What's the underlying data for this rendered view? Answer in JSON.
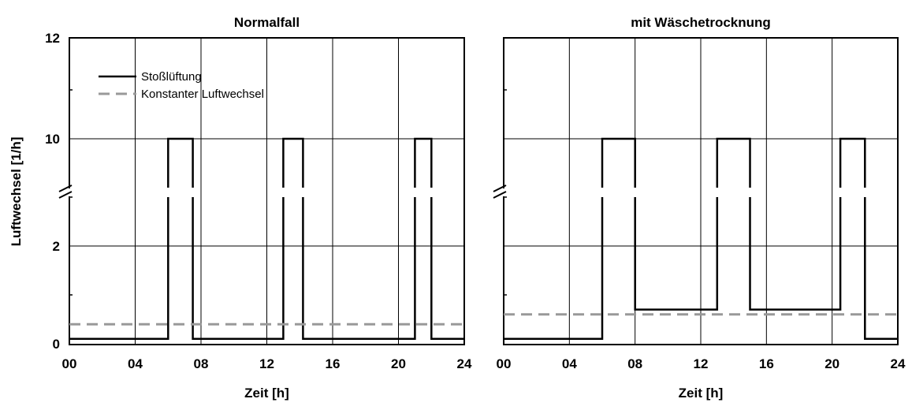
{
  "chart_data": [
    {
      "type": "line",
      "title": "Normalfall",
      "xlabel": "Zeit [h]",
      "ylabel": "Luftwechsel [1/h]",
      "xlim": [
        0,
        24
      ],
      "x_ticks": [
        "00",
        "04",
        "08",
        "12",
        "16",
        "20",
        "24"
      ],
      "y_ticks": [
        "0",
        "2",
        "10",
        "12"
      ],
      "y_axis_broken": true,
      "grid": true,
      "legend": {
        "position": "top-left",
        "entries": [
          "Stoßlüftung",
          "Konstanter Luftwechsel"
        ]
      },
      "series": [
        {
          "name": "Stoßlüftung",
          "color": "#000000",
          "style": "solid",
          "step_points": [
            [
              0,
              0.1
            ],
            [
              6,
              0.1
            ],
            [
              6,
              10
            ],
            [
              7.5,
              10
            ],
            [
              7.5,
              0.1
            ],
            [
              13,
              0.1
            ],
            [
              13,
              10
            ],
            [
              14.2,
              10
            ],
            [
              14.2,
              0.1
            ],
            [
              21,
              0.1
            ],
            [
              21,
              10
            ],
            [
              22,
              10
            ],
            [
              22,
              0.1
            ],
            [
              24,
              0.1
            ]
          ]
        },
        {
          "name": "Konstanter Luftwechsel",
          "color": "#999999",
          "style": "dashed",
          "step_points": [
            [
              0,
              0.4
            ],
            [
              24,
              0.4
            ]
          ]
        }
      ]
    },
    {
      "type": "line",
      "title": "mit Wäschetrocknung",
      "xlabel": "Zeit [h]",
      "xlim": [
        0,
        24
      ],
      "x_ticks": [
        "00",
        "04",
        "08",
        "12",
        "16",
        "20",
        "24"
      ],
      "y_axis_broken": true,
      "grid": true,
      "series": [
        {
          "name": "Stoßlüftung",
          "color": "#000000",
          "style": "solid",
          "step_points": [
            [
              0,
              0.1
            ],
            [
              6,
              0.1
            ],
            [
              6,
              10
            ],
            [
              8,
              10
            ],
            [
              8,
              0.7
            ],
            [
              13,
              0.7
            ],
            [
              13,
              10
            ],
            [
              15,
              10
            ],
            [
              15,
              0.7
            ],
            [
              20.5,
              0.7
            ],
            [
              20.5,
              10
            ],
            [
              22,
              10
            ],
            [
              22,
              0.1
            ],
            [
              24,
              0.1
            ]
          ]
        },
        {
          "name": "Konstanter Luftwechsel",
          "color": "#999999",
          "style": "dashed",
          "step_points": [
            [
              0,
              0.6
            ],
            [
              24,
              0.6
            ]
          ]
        }
      ]
    }
  ]
}
